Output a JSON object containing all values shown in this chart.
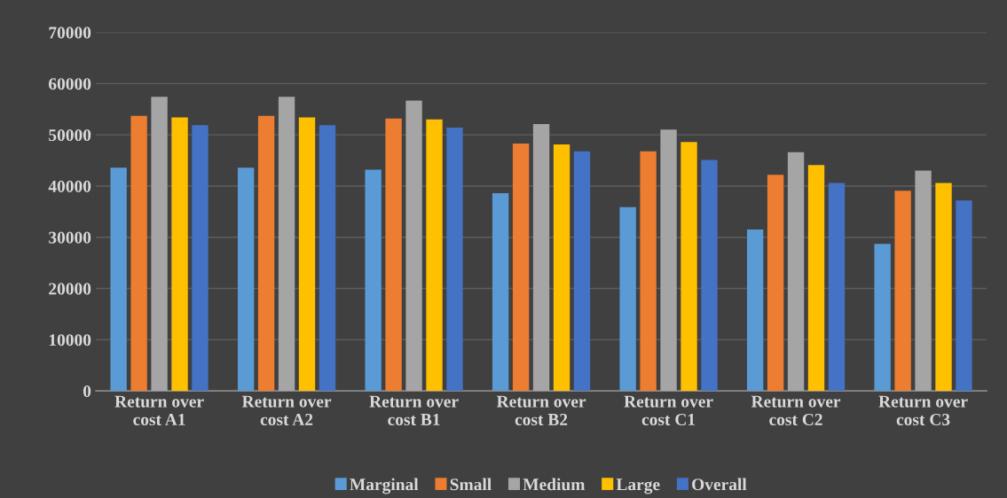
{
  "chart_data": {
    "type": "bar",
    "categories": [
      "Return over\ncost A1",
      "Return over\ncost A2",
      "Return over\ncost B1",
      "Return over\ncost B2",
      "Return over\ncost C1",
      "Return over\ncost C2",
      "Return over\ncost C3"
    ],
    "series": [
      {
        "name": "Marginal",
        "color": "#5b9bd5",
        "values": [
          43600,
          43600,
          43200,
          38600,
          35900,
          31500,
          28700
        ]
      },
      {
        "name": "Small",
        "color": "#ed7d31",
        "values": [
          53700,
          53700,
          53200,
          48300,
          46800,
          42200,
          39100
        ]
      },
      {
        "name": "Medium",
        "color": "#a5a5a5",
        "values": [
          57400,
          57400,
          56700,
          52100,
          51000,
          46600,
          43000
        ]
      },
      {
        "name": "Large",
        "color": "#ffc000",
        "values": [
          53400,
          53400,
          53000,
          48100,
          48600,
          44100,
          40600
        ]
      },
      {
        "name": "Overall",
        "color": "#4472c4",
        "values": [
          51900,
          51900,
          51400,
          46800,
          45100,
          40600,
          37200
        ]
      }
    ],
    "ylim": [
      0,
      70000
    ],
    "yticks": [
      0,
      10000,
      20000,
      30000,
      40000,
      50000,
      60000,
      70000
    ],
    "grid": "y",
    "legend": "bottom"
  }
}
